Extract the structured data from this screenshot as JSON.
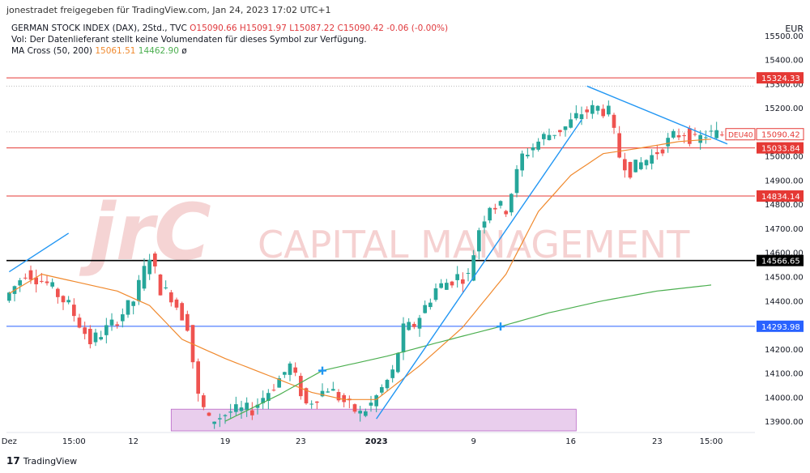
{
  "header": {
    "published": "jonestradet freigegeben für TradingView.com, Jan 24, 2023 17:02 UTC+1",
    "symbol_line": "GERMAN STOCK INDEX (DAX), 2Std., TVC",
    "ohlc": "O15090.66  H15091.97  L15087.22  C15090.42  -0.06 (-0.00%)",
    "notice": "Vol: Der Datenlieferant stellt keine Volumendaten für dieses Symbol zur Verfügung.",
    "ma_label": "MA Cross (50, 200)",
    "ma50_value": "15061.51",
    "ma200_value": "14462.90",
    "ma_suffix": "ø",
    "currency": "EUR"
  },
  "watermark": {
    "logo": "jrC",
    "text": "CAPITAL MANAGEMENT"
  },
  "footer": {
    "brand": "TradingView",
    "logo_glyph": "17"
  },
  "colors": {
    "up": "#26a69a",
    "down": "#ef5350",
    "ma50": "#f0892d",
    "ma200": "#4caf50",
    "trend": "#2196f3",
    "level_red": "#e53935",
    "level_black": "#000000",
    "level_blue": "#2962ff",
    "zone": "#e1bee7"
  },
  "chart_data": {
    "type": "candlestick",
    "ylim": [
      13860,
      15580
    ],
    "y_ticks": [
      13900,
      14000,
      14100,
      14200,
      14300,
      14400,
      14500,
      14600,
      14700,
      14800,
      14900,
      15000,
      15100,
      15200,
      15300,
      15400,
      15500
    ],
    "y_tick_labels": [
      "13900.00",
      "14000.00",
      "14100.00",
      "14200.00",
      "14300.00",
      "14400.00",
      "14500.00",
      "14600.00",
      "14700.00",
      "14800.00",
      "14900.00",
      "15000.00",
      "15100.00",
      "15200.00",
      "15300.00",
      "15400.00",
      "15500.00"
    ],
    "x_labels": [
      {
        "label": "Dez",
        "bar": 0
      },
      {
        "label": "15:00",
        "bar": 12
      },
      {
        "label": "12",
        "bar": 23
      },
      {
        "label": "19",
        "bar": 40
      },
      {
        "label": "23",
        "bar": 54
      },
      {
        "label": "2023",
        "bar": 68
      },
      {
        "label": "9",
        "bar": 86
      },
      {
        "label": "16",
        "bar": 104
      },
      {
        "label": "23",
        "bar": 120
      },
      {
        "label": "15:00",
        "bar": 130
      }
    ],
    "bar_count": 138,
    "levels": [
      {
        "price": 15324.33,
        "label": "15324.33",
        "color": "red"
      },
      {
        "price": 15033.84,
        "label": "15033.84",
        "color": "red"
      },
      {
        "price": 14834.14,
        "label": "14834.14",
        "color": "red"
      },
      {
        "price": 14566.65,
        "label": "14566.65",
        "color": "black"
      },
      {
        "price": 14293.98,
        "label": "14293.98",
        "color": "blue"
      }
    ],
    "last_price": {
      "symbol": "DEU40",
      "price": 15090.42,
      "label": "15090.42"
    },
    "zone": {
      "from_bar": 30,
      "to_bar": 105,
      "low": 13860,
      "high": 13950
    },
    "trendlines": [
      {
        "x1": 0,
        "y1": 14520,
        "x2": 11,
        "y2": 14680
      },
      {
        "x1": 68,
        "y1": 13910,
        "x2": 106,
        "y2": 15150
      },
      {
        "x1": 107,
        "y1": 15290,
        "x2": 133,
        "y2": 15050
      }
    ],
    "ma_cross_points": [
      {
        "bar": 58,
        "price": 14110
      },
      {
        "bar": 91,
        "price": 14293
      }
    ],
    "anchors": [
      [
        0,
        14400
      ],
      [
        4,
        14520
      ],
      [
        8,
        14470
      ],
      [
        12,
        14380
      ],
      [
        16,
        14230
      ],
      [
        20,
        14300
      ],
      [
        24,
        14400
      ],
      [
        27,
        14590
      ],
      [
        29,
        14450
      ],
      [
        31,
        14420
      ],
      [
        34,
        14300
      ],
      [
        36,
        14000
      ],
      [
        38,
        13900
      ],
      [
        42,
        13940
      ],
      [
        46,
        13950
      ],
      [
        50,
        14050
      ],
      [
        53,
        14130
      ],
      [
        56,
        13970
      ],
      [
        60,
        14040
      ],
      [
        64,
        13960
      ],
      [
        66,
        13930
      ],
      [
        68,
        13970
      ],
      [
        72,
        14100
      ],
      [
        74,
        14280
      ],
      [
        76,
        14300
      ],
      [
        80,
        14450
      ],
      [
        84,
        14500
      ],
      [
        86,
        14500
      ],
      [
        88,
        14700
      ],
      [
        90,
        14800
      ],
      [
        93,
        14780
      ],
      [
        96,
        15000
      ],
      [
        100,
        15080
      ],
      [
        104,
        15120
      ],
      [
        107,
        15180
      ],
      [
        110,
        15200
      ],
      [
        112,
        15180
      ],
      [
        114,
        15000
      ],
      [
        116,
        14940
      ],
      [
        120,
        15000
      ],
      [
        124,
        15080
      ],
      [
        126,
        15100
      ],
      [
        128,
        15060
      ],
      [
        130,
        15090
      ]
    ],
    "ma50_anchors": [
      [
        0,
        14430
      ],
      [
        6,
        14510
      ],
      [
        12,
        14480
      ],
      [
        20,
        14440
      ],
      [
        26,
        14380
      ],
      [
        32,
        14240
      ],
      [
        40,
        14160
      ],
      [
        48,
        14090
      ],
      [
        56,
        14020
      ],
      [
        62,
        13990
      ],
      [
        68,
        13990
      ],
      [
        76,
        14130
      ],
      [
        84,
        14290
      ],
      [
        92,
        14510
      ],
      [
        98,
        14770
      ],
      [
        104,
        14920
      ],
      [
        110,
        15010
      ],
      [
        116,
        15030
      ],
      [
        124,
        15060
      ],
      [
        130,
        15070
      ]
    ],
    "ma200_anchors": [
      [
        40,
        13900
      ],
      [
        50,
        14010
      ],
      [
        58,
        14110
      ],
      [
        70,
        14170
      ],
      [
        80,
        14230
      ],
      [
        91,
        14293
      ],
      [
        100,
        14350
      ],
      [
        110,
        14400
      ],
      [
        120,
        14440
      ],
      [
        130,
        14465
      ]
    ]
  }
}
